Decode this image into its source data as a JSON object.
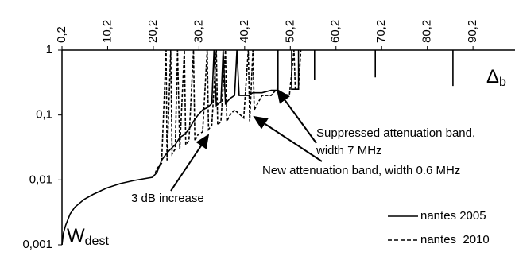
{
  "chart_data": {
    "type": "line",
    "x_label": {
      "main": "Δ",
      "sub": "b"
    },
    "y_label": {
      "main": "W",
      "sub": "dest"
    },
    "xlim": [
      0.2,
      99.4
    ],
    "ylim": [
      0.001,
      1
    ],
    "log_y": true,
    "xticks": [
      {
        "value": 0.2,
        "label": "0,2"
      },
      {
        "value": 10.2,
        "label": "10,2"
      },
      {
        "value": 20.2,
        "label": "20,2"
      },
      {
        "value": 30.2,
        "label": "30,2"
      },
      {
        "value": 40.2,
        "label": "40,2"
      },
      {
        "value": 50.2,
        "label": "50,2"
      },
      {
        "value": 60.2,
        "label": "60,2"
      },
      {
        "value": 70.2,
        "label": "70,2"
      },
      {
        "value": 80.2,
        "label": "80,2"
      },
      {
        "value": 90.2,
        "label": "90,2"
      }
    ],
    "yticks": [
      1,
      {
        "value": 0.1,
        "label": "0,1"
      },
      {
        "value": 0.01,
        "label": "0,01"
      },
      {
        "value": 0.001,
        "label": "0,001"
      }
    ],
    "legend": "bottom-right",
    "series": [
      {
        "name": "nantes 2005",
        "color": "#000000",
        "dash": false,
        "x": [
          0.2,
          0.5,
          1,
          2,
          3,
          5,
          7,
          10,
          13,
          16,
          20,
          21,
          22,
          23,
          24,
          25,
          26,
          27,
          28,
          29,
          30,
          31,
          32,
          33,
          33.5,
          34,
          35,
          35.5,
          36,
          37,
          38,
          38.5,
          39,
          40,
          41,
          42,
          44,
          46,
          47.5,
          47.5,
          47.5,
          50.5,
          50.5,
          52,
          52,
          52,
          55.5,
          55.5,
          55.5,
          68.8,
          68.8,
          68.8,
          85.8,
          85.8
        ],
        "values": [
          0.001,
          0.0015,
          0.002,
          0.003,
          0.0038,
          0.005,
          0.006,
          0.0075,
          0.0088,
          0.0098,
          0.011,
          0.013,
          0.02,
          0.025,
          0.03,
          0.035,
          0.045,
          0.05,
          0.06,
          0.08,
          0.1,
          0.12,
          0.13,
          0.15,
          1,
          0.14,
          0.16,
          1,
          0.15,
          0.18,
          0.2,
          1,
          0.2,
          0.2,
          0.2,
          0.22,
          0.22,
          0.24,
          0.24,
          1,
          null,
          1,
          0.25,
          0.25,
          1,
          null,
          1,
          0.35,
          null,
          1,
          0.38,
          null,
          1,
          0.28
        ]
      },
      {
        "name": "nantes  2010",
        "color": "#000000",
        "dash": true,
        "x": [
          20,
          20.5,
          21,
          22,
          23,
          23.2,
          24,
          24.3,
          25,
          25.5,
          26,
          27,
          27.3,
          28,
          29,
          29.3,
          30,
          31,
          32,
          32.3,
          33,
          34,
          34.3,
          35,
          36,
          36.3,
          37,
          38,
          40,
          41,
          41.3,
          42,
          42.3,
          44,
          46,
          47,
          48,
          50,
          51,
          51.3,
          52,
          52.5
        ],
        "values": [
          0.011,
          0.012,
          0.015,
          0.018,
          1,
          0.02,
          1,
          0.025,
          0.03,
          1,
          0.03,
          1,
          0.035,
          0.04,
          1,
          0.04,
          0.05,
          0.055,
          1,
          0.06,
          0.07,
          1,
          0.07,
          0.08,
          1,
          0.08,
          0.1,
          0.12,
          0.09,
          1,
          0.08,
          1,
          0.12,
          0.2,
          0.2,
          0.24,
          0.22,
          0.2,
          1,
          0.25,
          0.25,
          1
        ]
      }
    ],
    "annotations": [
      [
        "Suppressed attenuation band,",
        "width 7 MHz"
      ],
      [
        "New attenuation band, width 0.6 MHz"
      ],
      [
        "3 dB increase"
      ]
    ]
  }
}
